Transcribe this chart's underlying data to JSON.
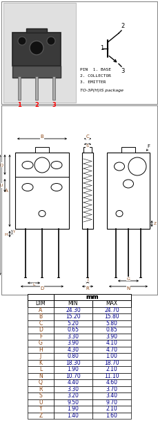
{
  "pin_labels": [
    "PIN  1. BASE",
    "2. COLLECTOR",
    "3. EMITTER",
    "TO-3P(H)IS package"
  ],
  "table_header": [
    "DIM",
    "MIN",
    "MAX"
  ],
  "table_unit": "mm",
  "table_data": [
    [
      "A",
      "24.30",
      "24.70"
    ],
    [
      "B",
      "15.20",
      "15.80"
    ],
    [
      "C",
      "5.20",
      "5.80"
    ],
    [
      "D",
      "0.65",
      "0.85"
    ],
    [
      "F",
      "3.30",
      "3.90"
    ],
    [
      "G",
      "3.90",
      "4.10"
    ],
    [
      "H",
      "4.30",
      "4.70"
    ],
    [
      "J",
      "0.80",
      "1.00"
    ],
    [
      "K",
      "18.30",
      "18.70"
    ],
    [
      "L",
      "1.90",
      "2.10"
    ],
    [
      "N",
      "10.70",
      "11.10"
    ],
    [
      "Q",
      "4.40",
      "4.60"
    ],
    [
      "R",
      "3.30",
      "3.70"
    ],
    [
      "S",
      "3.20",
      "3.40"
    ],
    [
      "U",
      "9.50",
      "9.70"
    ],
    [
      "Y",
      "1.90",
      "2.10"
    ],
    [
      "Z",
      "1.40",
      "1.60"
    ]
  ],
  "dim_color": "#8B4513",
  "num_color": "#00008B",
  "box_line_color": "#888888",
  "draw_line_color": "#555555"
}
